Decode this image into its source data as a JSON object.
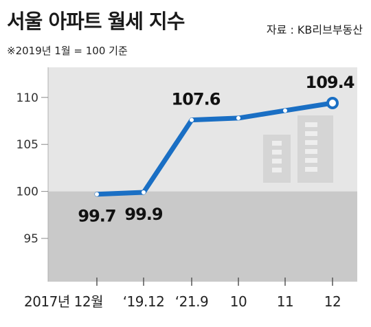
{
  "title": "서울 아파트 월세 지수",
  "source": "자료 : KB리브부동산",
  "note": "※2019년 1월 = 100 기준",
  "chart_data": {
    "type": "line",
    "title": "서울 아파트 월세 지수",
    "xlabel": "",
    "ylabel": "",
    "categories": [
      "2017년 12월",
      "‘19.12",
      "‘21.9",
      "10",
      "11",
      "12"
    ],
    "values": [
      99.7,
      99.9,
      107.6,
      107.8,
      108.6,
      109.4
    ],
    "data_labels": [
      {
        "index": 0,
        "text": "99.7"
      },
      {
        "index": 1,
        "text": "99.9"
      },
      {
        "index": 2,
        "text": "107.6"
      },
      {
        "index": 5,
        "text": "109.4"
      }
    ],
    "y_ticks": [
      95,
      100,
      105,
      110
    ],
    "ylim": [
      90.4,
      113.2
    ],
    "grid": false,
    "colors": {
      "line": "#1a6fc4",
      "panel": "#e6e6e6",
      "baseline_band": "#c9c9c9",
      "buildings": "#d5d5d5"
    }
  }
}
